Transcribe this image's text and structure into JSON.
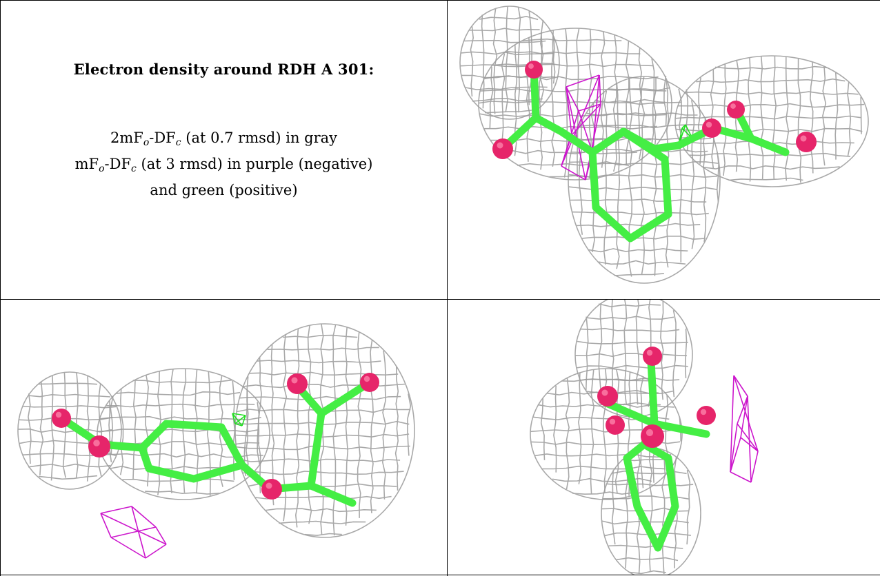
{
  "caption": {
    "title": "Electron density around RDH A 301:",
    "line1": {
      "a": "2mF",
      "sub1": "o",
      "b": "-DF",
      "sub2": "c",
      "c": " (at 0.7 rmsd) in gray"
    },
    "line2": {
      "a": "mF",
      "sub1": "o",
      "b": "-DF",
      "sub2": "c",
      "c": " (at 3 rmsd) in purple (negative)"
    },
    "line3": "and green (positive)"
  },
  "colors": {
    "mesh_2fofc": "#9a9a9a",
    "mesh_negative": "#cc16cc",
    "mesh_positive": "#22dd22",
    "carbon_stick": "#44ee44",
    "oxygen_atom": "#e6256a",
    "border": "#000000"
  },
  "views": [
    "view-top-right",
    "view-bottom-left",
    "view-bottom-right"
  ]
}
